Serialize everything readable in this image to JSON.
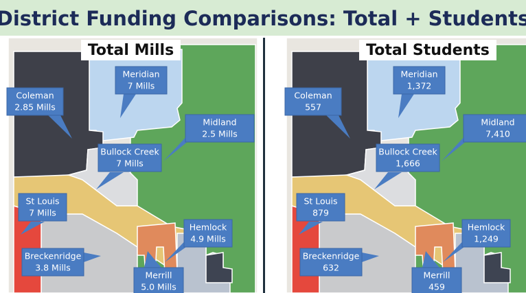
{
  "title": "District Funding Comparisons: Total + Students",
  "panels": [
    {
      "title": "Total Mills",
      "districts": [
        {
          "name": "Meridian",
          "value": "7 Mills"
        },
        {
          "name": "Coleman",
          "value": "2.85 Mills"
        },
        {
          "name": "Midland",
          "value": "2.5 Mills"
        },
        {
          "name": "Bullock Creek",
          "value": "7 Mills"
        },
        {
          "name": "St Louis",
          "value": "7 Mills"
        },
        {
          "name": "Hemlock",
          "value": "4.9 Mills"
        },
        {
          "name": "Breckenridge",
          "value": "3.8 Mills"
        },
        {
          "name": "Merrill",
          "value": "5.0 Mills"
        }
      ]
    },
    {
      "title": "Total Students",
      "districts": [
        {
          "name": "Meridian",
          "value": "1,372"
        },
        {
          "name": "Coleman",
          "value": "557"
        },
        {
          "name": "Midland",
          "value": "7,410"
        },
        {
          "name": "Bullock Creek",
          "value": "1,666"
        },
        {
          "name": "St Louis",
          "value": "879"
        },
        {
          "name": "Hemlock",
          "value": "1,249"
        },
        {
          "name": "Breckenridge",
          "value": "632"
        },
        {
          "name": "Merrill",
          "value": "459"
        }
      ]
    }
  ]
}
